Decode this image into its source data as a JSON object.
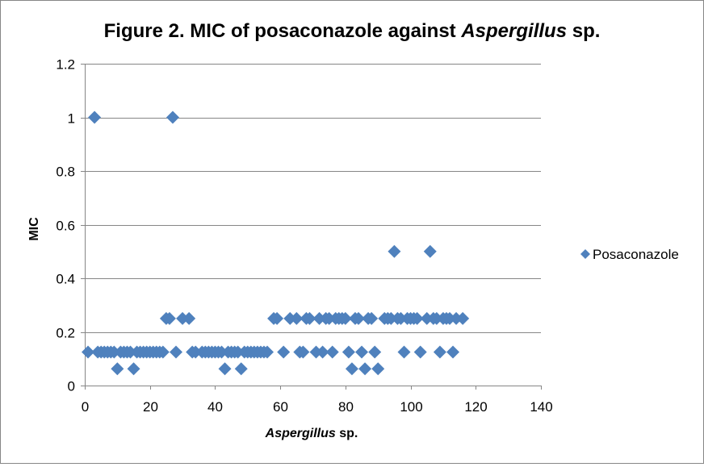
{
  "chart_data": {
    "type": "scatter",
    "title_plain": "Figure 2. MIC of posaconazole against ",
    "title_italic": "Aspergillus",
    "title_suffix": " sp.",
    "xlabel_italic": "Aspergillus",
    "xlabel_suffix": " sp.",
    "ylabel": "MIC",
    "xlim": [
      0,
      140
    ],
    "ylim": [
      0,
      1.2
    ],
    "xticks": [
      0,
      20,
      40,
      60,
      80,
      100,
      120,
      140
    ],
    "yticks": [
      0,
      0.2,
      0.4,
      0.6,
      0.8,
      1,
      1.2
    ],
    "grid": "horizontal",
    "legend_position": "right",
    "series": [
      {
        "name": "Posaconazole",
        "color": "#4f81bd",
        "marker": "diamond",
        "points": [
          [
            1,
            0.125
          ],
          [
            3,
            1
          ],
          [
            4,
            0.125
          ],
          [
            5,
            0.125
          ],
          [
            6,
            0.125
          ],
          [
            7,
            0.125
          ],
          [
            8,
            0.125
          ],
          [
            9,
            0.125
          ],
          [
            10,
            0.0625
          ],
          [
            11,
            0.125
          ],
          [
            12,
            0.125
          ],
          [
            13,
            0.125
          ],
          [
            14,
            0.125
          ],
          [
            15,
            0.0625
          ],
          [
            16,
            0.125
          ],
          [
            17,
            0.125
          ],
          [
            18,
            0.125
          ],
          [
            19,
            0.125
          ],
          [
            20,
            0.125
          ],
          [
            21,
            0.125
          ],
          [
            22,
            0.125
          ],
          [
            23,
            0.125
          ],
          [
            24,
            0.125
          ],
          [
            25,
            0.25
          ],
          [
            26,
            0.25
          ],
          [
            27,
            1
          ],
          [
            28,
            0.125
          ],
          [
            30,
            0.25
          ],
          [
            32,
            0.25
          ],
          [
            33,
            0.125
          ],
          [
            34,
            0.125
          ],
          [
            36,
            0.125
          ],
          [
            37,
            0.125
          ],
          [
            38,
            0.125
          ],
          [
            39,
            0.125
          ],
          [
            40,
            0.125
          ],
          [
            41,
            0.125
          ],
          [
            42,
            0.125
          ],
          [
            43,
            0.0625
          ],
          [
            44,
            0.125
          ],
          [
            45,
            0.125
          ],
          [
            46,
            0.125
          ],
          [
            47,
            0.125
          ],
          [
            48,
            0.0625
          ],
          [
            49,
            0.125
          ],
          [
            50,
            0.125
          ],
          [
            51,
            0.125
          ],
          [
            52,
            0.125
          ],
          [
            53,
            0.125
          ],
          [
            54,
            0.125
          ],
          [
            55,
            0.125
          ],
          [
            56,
            0.125
          ],
          [
            58,
            0.25
          ],
          [
            59,
            0.25
          ],
          [
            61,
            0.125
          ],
          [
            63,
            0.25
          ],
          [
            65,
            0.25
          ],
          [
            66,
            0.125
          ],
          [
            67,
            0.125
          ],
          [
            68,
            0.25
          ],
          [
            69,
            0.25
          ],
          [
            71,
            0.125
          ],
          [
            72,
            0.25
          ],
          [
            73,
            0.125
          ],
          [
            74,
            0.25
          ],
          [
            75,
            0.25
          ],
          [
            76,
            0.125
          ],
          [
            77,
            0.25
          ],
          [
            78,
            0.25
          ],
          [
            79,
            0.25
          ],
          [
            80,
            0.25
          ],
          [
            81,
            0.125
          ],
          [
            82,
            0.0625
          ],
          [
            83,
            0.25
          ],
          [
            84,
            0.25
          ],
          [
            85,
            0.125
          ],
          [
            86,
            0.0625
          ],
          [
            87,
            0.25
          ],
          [
            88,
            0.25
          ],
          [
            89,
            0.125
          ],
          [
            90,
            0.0625
          ],
          [
            92,
            0.25
          ],
          [
            93,
            0.25
          ],
          [
            94,
            0.25
          ],
          [
            95,
            0.5
          ],
          [
            96,
            0.25
          ],
          [
            97,
            0.25
          ],
          [
            98,
            0.125
          ],
          [
            99,
            0.25
          ],
          [
            100,
            0.25
          ],
          [
            101,
            0.25
          ],
          [
            102,
            0.25
          ],
          [
            103,
            0.125
          ],
          [
            105,
            0.25
          ],
          [
            106,
            0.5
          ],
          [
            107,
            0.25
          ],
          [
            108,
            0.25
          ],
          [
            109,
            0.125
          ],
          [
            110,
            0.25
          ],
          [
            111,
            0.25
          ],
          [
            112,
            0.25
          ],
          [
            113,
            0.125
          ],
          [
            114,
            0.25
          ],
          [
            116,
            0.25
          ]
        ]
      }
    ]
  }
}
